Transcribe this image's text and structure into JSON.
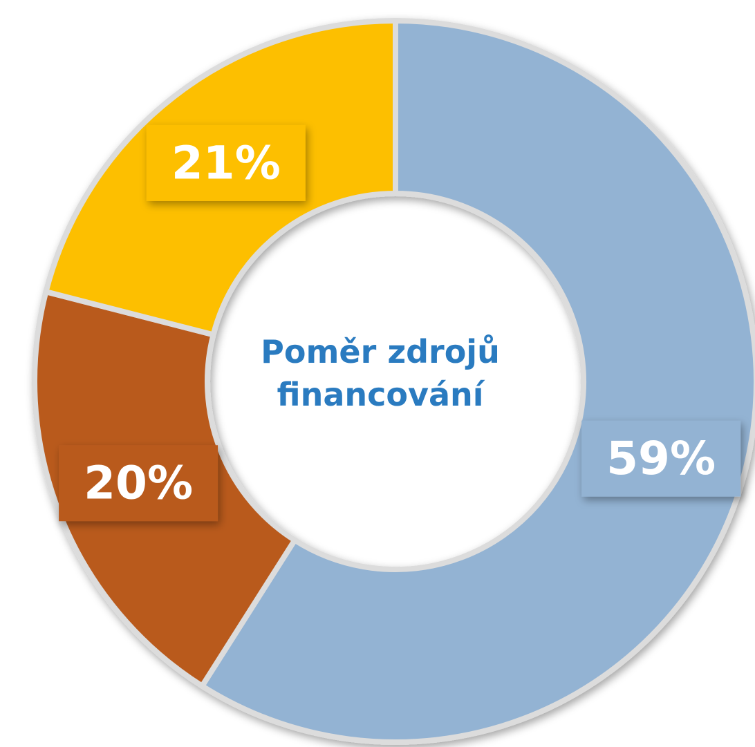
{
  "chart_data": {
    "type": "donut",
    "title": "Poměr zdrojů financování",
    "values": [
      59,
      20,
      21
    ],
    "value_labels": [
      "59%",
      "20%",
      "21%"
    ],
    "colors": [
      "#93b3d3",
      "#b95a1e",
      "#fdbf00"
    ]
  }
}
